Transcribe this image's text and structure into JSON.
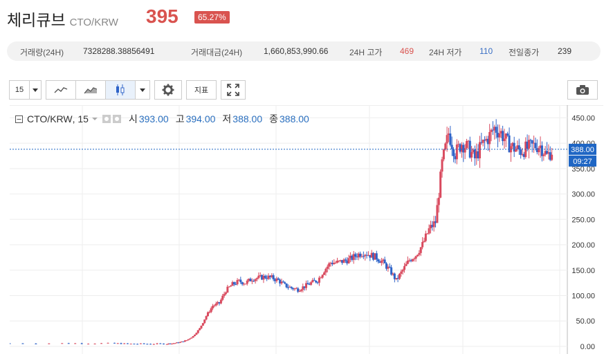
{
  "header": {
    "coin_name": "체리큐브",
    "pair": "CTO/KRW",
    "price": "395",
    "change": "65.27%"
  },
  "stats": {
    "volume_label": "거래량(24H)",
    "volume_value": "7328288.38856491",
    "turnover_label": "거래대금(24H)",
    "turnover_value": "1,660,853,990.66",
    "high_label": "24H 고가",
    "high_value": "469",
    "low_label": "24H 저가",
    "low_value": "110",
    "prev_close_label": "전일종가",
    "prev_close_value": "239"
  },
  "toolbar": {
    "interval": "15",
    "indicator_label": "지표"
  },
  "legend": {
    "symbol": "CTO/KRW",
    "interval": "15",
    "open_label": "시",
    "open_value": "393.00",
    "high_label": "고",
    "high_value": "394.00",
    "low_label": "저",
    "low_value": "388.00",
    "close_label": "종",
    "close_value": "388.00"
  },
  "colors": {
    "up": "#d94a5e",
    "down": "#2e63c8",
    "price_label_bg": "#1f66c4",
    "accent_red": "#d9534f"
  },
  "chart_data": {
    "type": "candlestick",
    "y_ticks": [
      "0.00",
      "50.00",
      "100.00",
      "150.00",
      "200.00",
      "250.00",
      "300.00",
      "350.00",
      "400.00",
      "450.00"
    ],
    "ylim": [
      -15,
      475
    ],
    "current_price_label": "388.00",
    "countdown_label": "09:27",
    "current_price": 388,
    "grid": true,
    "series_close_estimates": [
      [
        0,
        6
      ],
      [
        40,
        6
      ],
      [
        60,
        6
      ],
      [
        80,
        6
      ],
      [
        90,
        5
      ],
      [
        100,
        5
      ],
      [
        110,
        5
      ],
      [
        120,
        5
      ],
      [
        125,
        6
      ],
      [
        130,
        8
      ],
      [
        135,
        12
      ],
      [
        140,
        20
      ],
      [
        145,
        35
      ],
      [
        150,
        60
      ],
      [
        155,
        80
      ],
      [
        160,
        85
      ],
      [
        165,
        110
      ],
      [
        170,
        122
      ],
      [
        175,
        128
      ],
      [
        180,
        125
      ],
      [
        185,
        133
      ],
      [
        190,
        135
      ],
      [
        195,
        137
      ],
      [
        200,
        135
      ],
      [
        205,
        130
      ],
      [
        210,
        120
      ],
      [
        215,
        115
      ],
      [
        220,
        112
      ],
      [
        225,
        118
      ],
      [
        230,
        125
      ],
      [
        235,
        130
      ],
      [
        240,
        150
      ],
      [
        245,
        165
      ],
      [
        250,
        165
      ],
      [
        255,
        168
      ],
      [
        260,
        172
      ],
      [
        265,
        180
      ],
      [
        270,
        185
      ],
      [
        275,
        180
      ],
      [
        280,
        175
      ],
      [
        285,
        165
      ],
      [
        290,
        150
      ],
      [
        295,
        130
      ],
      [
        300,
        150
      ],
      [
        305,
        170
      ],
      [
        310,
        180
      ],
      [
        315,
        200
      ],
      [
        320,
        230
      ],
      [
        325,
        245
      ],
      [
        330,
        360
      ],
      [
        335,
        420
      ],
      [
        340,
        380
      ],
      [
        345,
        400
      ],
      [
        350,
        390
      ],
      [
        355,
        370
      ],
      [
        360,
        395
      ],
      [
        365,
        410
      ],
      [
        370,
        430
      ],
      [
        375,
        420
      ],
      [
        380,
        400
      ],
      [
        385,
        390
      ],
      [
        390,
        385
      ],
      [
        395,
        390
      ],
      [
        400,
        395
      ],
      [
        405,
        395
      ],
      [
        410,
        375
      ],
      [
        415,
        388
      ]
    ]
  }
}
